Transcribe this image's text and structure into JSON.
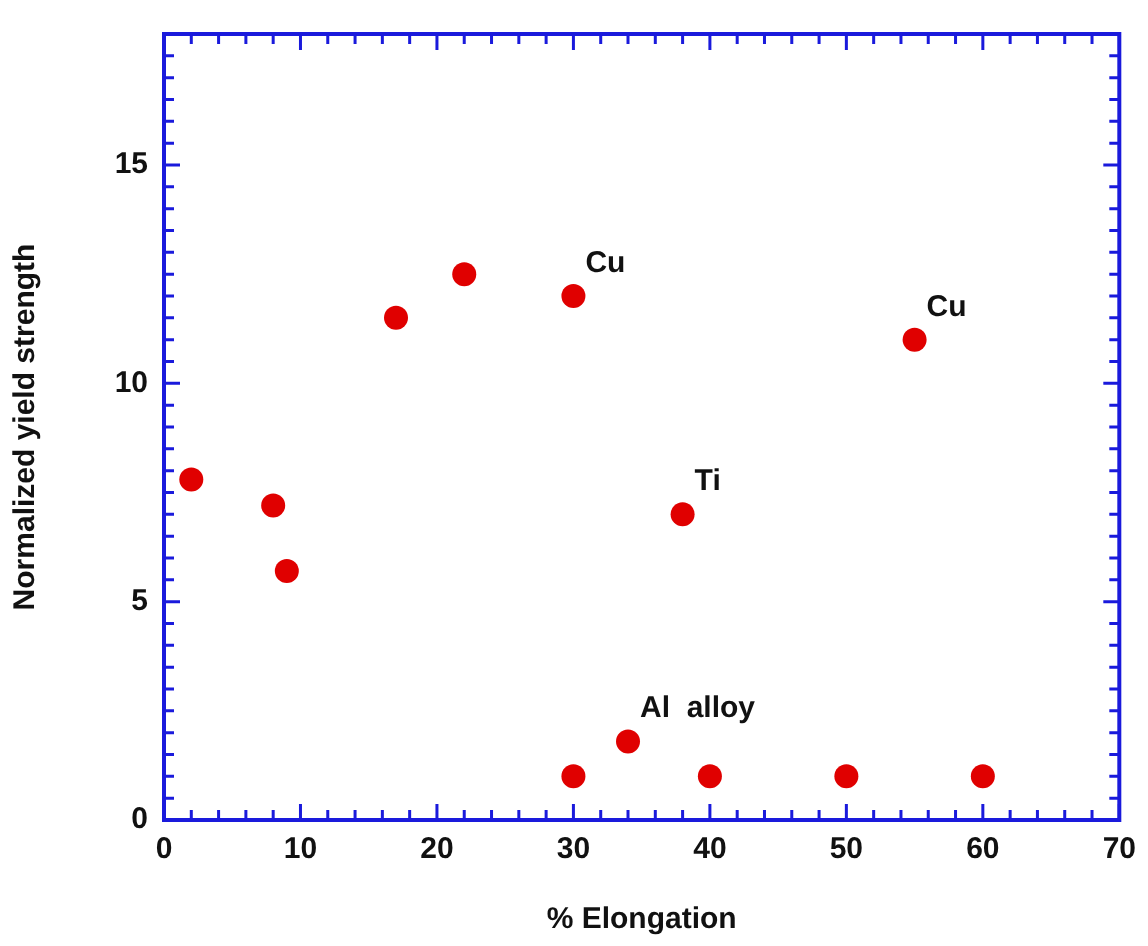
{
  "chart_data": {
    "type": "scatter",
    "xlabel": "% Elongation",
    "ylabel": "Normalized yield strength",
    "x": [
      2,
      8,
      9,
      17,
      22,
      30,
      55,
      38,
      34,
      30,
      40,
      50,
      60
    ],
    "series": [
      {
        "color": "#e00000",
        "values": [
          7.8,
          7.2,
          5.7,
          11.5,
          12.5,
          12,
          11,
          7,
          1.8,
          1,
          1,
          1,
          1
        ]
      }
    ],
    "marker": "circle",
    "grid": false,
    "legend": false,
    "xlim": [
      0,
      70
    ],
    "xticks": [
      0,
      {
        "value": 2,
        "label": null
      },
      {
        "value": 4,
        "label": null
      },
      {
        "value": 6,
        "label": null
      },
      {
        "value": 8,
        "label": null
      },
      10,
      {
        "value": 12,
        "label": null
      },
      {
        "value": 14,
        "label": null
      },
      {
        "value": 16,
        "label": null
      },
      {
        "value": 18,
        "label": null
      },
      20,
      {
        "value": 22,
        "label": null
      },
      {
        "value": 24,
        "label": null
      },
      {
        "value": 26,
        "label": null
      },
      {
        "value": 28,
        "label": null
      },
      30,
      {
        "value": 32,
        "label": null
      },
      {
        "value": 34,
        "label": null
      },
      {
        "value": 36,
        "label": null
      },
      {
        "value": 38,
        "label": null
      },
      40,
      {
        "value": 42,
        "label": null
      },
      {
        "value": 44,
        "label": null
      },
      {
        "value": 46,
        "label": null
      },
      {
        "value": 48,
        "label": null
      },
      50,
      {
        "value": 52,
        "label": null
      },
      {
        "value": 54,
        "label": null
      },
      {
        "value": 56,
        "label": null
      },
      {
        "value": 58,
        "label": null
      },
      60,
      {
        "value": 62,
        "label": null
      },
      {
        "value": 64,
        "label": null
      },
      {
        "value": 66,
        "label": null
      },
      {
        "value": 68,
        "label": null
      },
      70
    ],
    "ylim": [
      0,
      18
    ],
    "yticks": [
      0,
      {
        "value": 0.5,
        "label": null
      },
      {
        "value": 1,
        "label": null
      },
      {
        "value": 1.5,
        "label": null
      },
      {
        "value": 2,
        "label": null
      },
      {
        "value": 2.5,
        "label": null
      },
      {
        "value": 3,
        "label": null
      },
      {
        "value": 3.5,
        "label": null
      },
      {
        "value": 4,
        "label": null
      },
      {
        "value": 4.5,
        "label": null
      },
      5,
      {
        "value": 5.5,
        "label": null
      },
      {
        "value": 6,
        "label": null
      },
      {
        "value": 6.5,
        "label": null
      },
      {
        "value": 7,
        "label": null
      },
      {
        "value": 7.5,
        "label": null
      },
      {
        "value": 8,
        "label": null
      },
      {
        "value": 8.5,
        "label": null
      },
      {
        "value": 9,
        "label": null
      },
      {
        "value": 9.5,
        "label": null
      },
      10,
      {
        "value": 10.5,
        "label": null
      },
      {
        "value": 11,
        "label": null
      },
      {
        "value": 11.5,
        "label": null
      },
      {
        "value": 12,
        "label": null
      },
      {
        "value": 12.5,
        "label": null
      },
      {
        "value": 13,
        "label": null
      },
      {
        "value": 13.5,
        "label": null
      },
      {
        "value": 14,
        "label": null
      },
      {
        "value": 14.5,
        "label": null
      },
      15,
      {
        "value": 15.5,
        "label": null
      },
      {
        "value": 16,
        "label": null
      },
      {
        "value": 16.5,
        "label": null
      },
      {
        "value": 17,
        "label": null
      },
      {
        "value": 17.5,
        "label": null
      },
      {
        "value": 18,
        "label": null
      }
    ],
    "annotations": [
      {
        "text": "Cu",
        "x": 30,
        "y": 12
      },
      {
        "text": "Cu",
        "x": 55,
        "y": 11
      },
      {
        "text": "Ti",
        "x": 38,
        "y": 7
      },
      {
        "text": "Al  alloy",
        "x": 34,
        "y": 1.8
      }
    ]
  }
}
